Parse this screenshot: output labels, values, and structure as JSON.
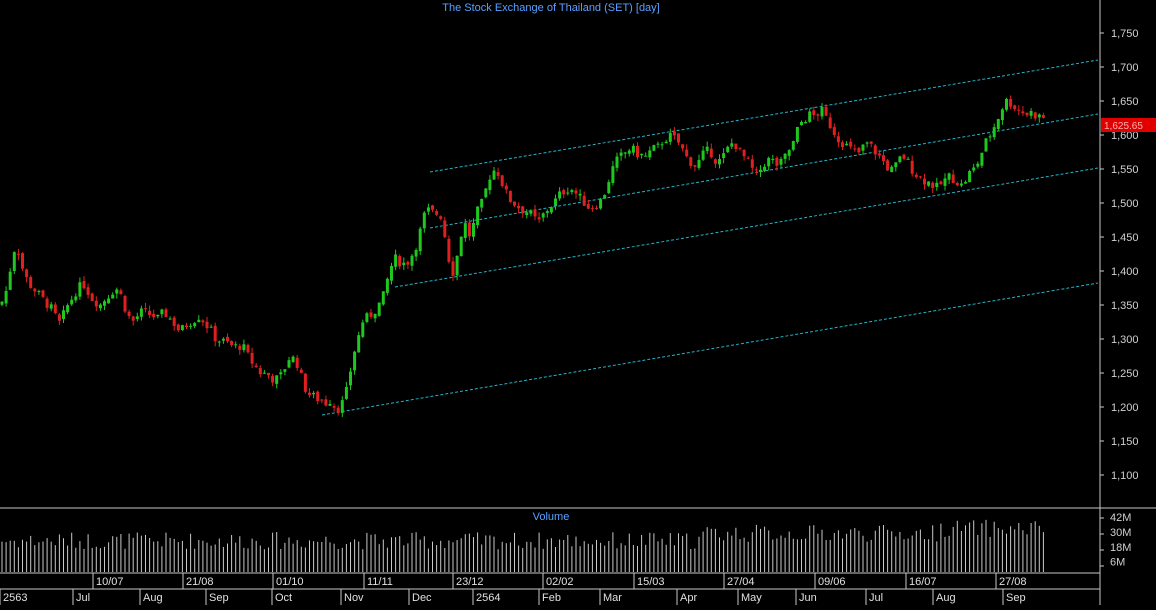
{
  "chart_data": {
    "type": "candlestick",
    "title": "The Stock Exchange of Thailand (SET) [day]",
    "last_price_label": "1,625.65",
    "price_axis": {
      "ylim": [
        1050,
        1800
      ],
      "ticks": [
        1100,
        1150,
        1200,
        1250,
        1300,
        1350,
        1400,
        1450,
        1500,
        1550,
        1600,
        1650,
        1700,
        1750
      ],
      "tick_labels": [
        "1,100",
        "1,150",
        "1,200",
        "1,250",
        "1,300",
        "1,350",
        "1,400",
        "1,450",
        "1,500",
        "1,550",
        "1,600",
        "1,650",
        "1,700",
        "1,750"
      ]
    },
    "volume_panel": {
      "label": "Volume",
      "ticks": [
        6,
        18,
        30,
        42
      ],
      "tick_labels": [
        "6M",
        "18M",
        "30M",
        "42M"
      ],
      "ylim": [
        0,
        47
      ]
    },
    "x_date_labels": [
      "10/07",
      "21/08",
      "01/10",
      "11/11",
      "23/12",
      "02/02",
      "15/03",
      "27/04",
      "09/06",
      "16/07",
      "27/08"
    ],
    "x_month_labels": [
      "2563",
      "Jul",
      "Aug",
      "Sep",
      "Oct",
      "Nov",
      "Dec",
      "2564",
      "Feb",
      "Mar",
      "Apr",
      "May",
      "Jun",
      "Jul",
      "Aug",
      "Sep"
    ],
    "grid": false,
    "series_close_path": [
      [
        0,
        1350
      ],
      [
        4,
        1360
      ],
      [
        8,
        1380
      ],
      [
        12,
        1420
      ],
      [
        16,
        1440
      ],
      [
        20,
        1420
      ],
      [
        24,
        1395
      ],
      [
        30,
        1380
      ],
      [
        36,
        1370
      ],
      [
        42,
        1360
      ],
      [
        48,
        1350
      ],
      [
        54,
        1340
      ],
      [
        58,
        1320
      ],
      [
        62,
        1330
      ],
      [
        66,
        1345
      ],
      [
        72,
        1360
      ],
      [
        78,
        1375
      ],
      [
        84,
        1380
      ],
      [
        88,
        1370
      ],
      [
        92,
        1360
      ],
      [
        96,
        1355
      ],
      [
        100,
        1350
      ],
      [
        106,
        1360
      ],
      [
        112,
        1370
      ],
      [
        116,
        1375
      ],
      [
        120,
        1368
      ],
      [
        124,
        1350
      ],
      [
        128,
        1335
      ],
      [
        132,
        1325
      ],
      [
        136,
        1330
      ],
      [
        140,
        1340
      ],
      [
        146,
        1338
      ],
      [
        152,
        1335
      ],
      [
        158,
        1330
      ],
      [
        164,
        1340
      ],
      [
        170,
        1330
      ],
      [
        176,
        1320
      ],
      [
        180,
        1310
      ],
      [
        184,
        1318
      ],
      [
        190,
        1325
      ],
      [
        196,
        1330
      ],
      [
        200,
        1335
      ],
      [
        204,
        1325
      ],
      [
        208,
        1318
      ],
      [
        212,
        1310
      ],
      [
        216,
        1300
      ],
      [
        220,
        1298
      ],
      [
        226,
        1295
      ],
      [
        232,
        1290
      ],
      [
        238,
        1288
      ],
      [
        242,
        1292
      ],
      [
        246,
        1280
      ],
      [
        250,
        1270
      ],
      [
        254,
        1262
      ],
      [
        258,
        1255
      ],
      [
        262,
        1248
      ],
      [
        266,
        1250
      ],
      [
        270,
        1245
      ],
      [
        274,
        1240
      ],
      [
        278,
        1242
      ],
      [
        282,
        1248
      ],
      [
        286,
        1262
      ],
      [
        290,
        1275
      ],
      [
        294,
        1270
      ],
      [
        298,
        1262
      ],
      [
        302,
        1240
      ],
      [
        306,
        1225
      ],
      [
        310,
        1218
      ],
      [
        314,
        1215
      ],
      [
        318,
        1212
      ],
      [
        322,
        1210
      ],
      [
        326,
        1206
      ],
      [
        330,
        1210
      ],
      [
        334,
        1202
      ],
      [
        338,
        1198
      ],
      [
        342,
        1205
      ],
      [
        346,
        1220
      ],
      [
        350,
        1250
      ],
      [
        354,
        1280
      ],
      [
        358,
        1300
      ],
      [
        362,
        1325
      ],
      [
        366,
        1330
      ],
      [
        370,
        1335
      ],
      [
        374,
        1340
      ],
      [
        378,
        1350
      ],
      [
        382,
        1355
      ],
      [
        386,
        1380
      ],
      [
        390,
        1400
      ],
      [
        394,
        1420
      ],
      [
        398,
        1415
      ],
      [
        402,
        1412
      ],
      [
        406,
        1410
      ],
      [
        410,
        1418
      ],
      [
        414,
        1430
      ],
      [
        418,
        1445
      ],
      [
        422,
        1470
      ],
      [
        426,
        1490
      ],
      [
        430,
        1488
      ],
      [
        434,
        1485
      ],
      [
        438,
        1484
      ],
      [
        442,
        1480
      ],
      [
        446,
        1440
      ],
      [
        450,
        1410
      ],
      [
        454,
        1395
      ],
      [
        458,
        1430
      ],
      [
        462,
        1460
      ],
      [
        466,
        1470
      ],
      [
        470,
        1450
      ],
      [
        474,
        1470
      ],
      [
        478,
        1490
      ],
      [
        482,
        1500
      ],
      [
        486,
        1520
      ],
      [
        490,
        1540
      ],
      [
        494,
        1548
      ],
      [
        498,
        1545
      ],
      [
        502,
        1530
      ],
      [
        506,
        1515
      ],
      [
        510,
        1505
      ],
      [
        514,
        1500
      ],
      [
        518,
        1495
      ],
      [
        522,
        1490
      ],
      [
        526,
        1488
      ],
      [
        530,
        1485
      ],
      [
        534,
        1478
      ],
      [
        538,
        1470
      ],
      [
        542,
        1480
      ],
      [
        546,
        1488
      ],
      [
        550,
        1495
      ],
      [
        554,
        1500
      ],
      [
        558,
        1510
      ],
      [
        562,
        1515
      ],
      [
        566,
        1520
      ],
      [
        570,
        1522
      ],
      [
        574,
        1518
      ],
      [
        578,
        1510
      ],
      [
        582,
        1505
      ],
      [
        586,
        1498
      ],
      [
        590,
        1492
      ],
      [
        594,
        1495
      ],
      [
        598,
        1500
      ],
      [
        602,
        1505
      ],
      [
        606,
        1520
      ],
      [
        610,
        1540
      ],
      [
        614,
        1555
      ],
      [
        618,
        1565
      ],
      [
        622,
        1570
      ],
      [
        626,
        1575
      ],
      [
        630,
        1580
      ],
      [
        634,
        1577
      ],
      [
        638,
        1572
      ],
      [
        642,
        1570
      ],
      [
        646,
        1568
      ],
      [
        650,
        1575
      ],
      [
        654,
        1580
      ],
      [
        658,
        1582
      ],
      [
        662,
        1590
      ],
      [
        666,
        1595
      ],
      [
        670,
        1598
      ],
      [
        674,
        1595
      ],
      [
        678,
        1590
      ],
      [
        682,
        1580
      ],
      [
        686,
        1568
      ],
      [
        690,
        1562
      ],
      [
        694,
        1555
      ],
      [
        698,
        1558
      ],
      [
        702,
        1570
      ],
      [
        706,
        1575
      ],
      [
        710,
        1578
      ],
      [
        714,
        1565
      ],
      [
        718,
        1560
      ],
      [
        722,
        1565
      ],
      [
        726,
        1575
      ],
      [
        730,
        1585
      ],
      [
        734,
        1590
      ],
      [
        738,
        1580
      ],
      [
        742,
        1570
      ],
      [
        746,
        1565
      ],
      [
        750,
        1555
      ],
      [
        754,
        1545
      ],
      [
        758,
        1540
      ],
      [
        762,
        1555
      ],
      [
        766,
        1560
      ],
      [
        770,
        1565
      ],
      [
        774,
        1560
      ],
      [
        778,
        1555
      ],
      [
        782,
        1560
      ],
      [
        786,
        1570
      ],
      [
        790,
        1580
      ],
      [
        794,
        1590
      ],
      [
        798,
        1610
      ],
      [
        802,
        1620
      ],
      [
        806,
        1625
      ],
      [
        810,
        1630
      ],
      [
        814,
        1628
      ],
      [
        818,
        1632
      ],
      [
        822,
        1635
      ],
      [
        826,
        1625
      ],
      [
        830,
        1615
      ],
      [
        834,
        1605
      ],
      [
        838,
        1595
      ],
      [
        842,
        1590
      ],
      [
        846,
        1585
      ],
      [
        850,
        1580
      ],
      [
        854,
        1575
      ],
      [
        858,
        1572
      ],
      [
        862,
        1580
      ],
      [
        866,
        1588
      ],
      [
        870,
        1585
      ],
      [
        874,
        1578
      ],
      [
        878,
        1570
      ],
      [
        882,
        1565
      ],
      [
        886,
        1555
      ],
      [
        890,
        1548
      ],
      [
        894,
        1550
      ],
      [
        898,
        1560
      ],
      [
        902,
        1570
      ],
      [
        906,
        1565
      ],
      [
        910,
        1555
      ],
      [
        914,
        1545
      ],
      [
        918,
        1540
      ],
      [
        922,
        1535
      ],
      [
        926,
        1532
      ],
      [
        930,
        1530
      ],
      [
        934,
        1525
      ],
      [
        938,
        1522
      ],
      [
        942,
        1530
      ],
      [
        946,
        1535
      ],
      [
        950,
        1540
      ],
      [
        954,
        1535
      ],
      [
        958,
        1530
      ],
      [
        962,
        1525
      ],
      [
        966,
        1535
      ],
      [
        970,
        1545
      ],
      [
        974,
        1550
      ],
      [
        978,
        1560
      ],
      [
        982,
        1575
      ],
      [
        986,
        1590
      ],
      [
        990,
        1600
      ],
      [
        994,
        1612
      ],
      [
        998,
        1625
      ],
      [
        1002,
        1640
      ],
      [
        1006,
        1650
      ],
      [
        1010,
        1648
      ],
      [
        1014,
        1642
      ],
      [
        1018,
        1638
      ],
      [
        1022,
        1635
      ],
      [
        1026,
        1630
      ],
      [
        1030,
        1634
      ],
      [
        1034,
        1630
      ],
      [
        1038,
        1628
      ],
      [
        1042,
        1626
      ],
      [
        1046,
        1625
      ]
    ]
  }
}
